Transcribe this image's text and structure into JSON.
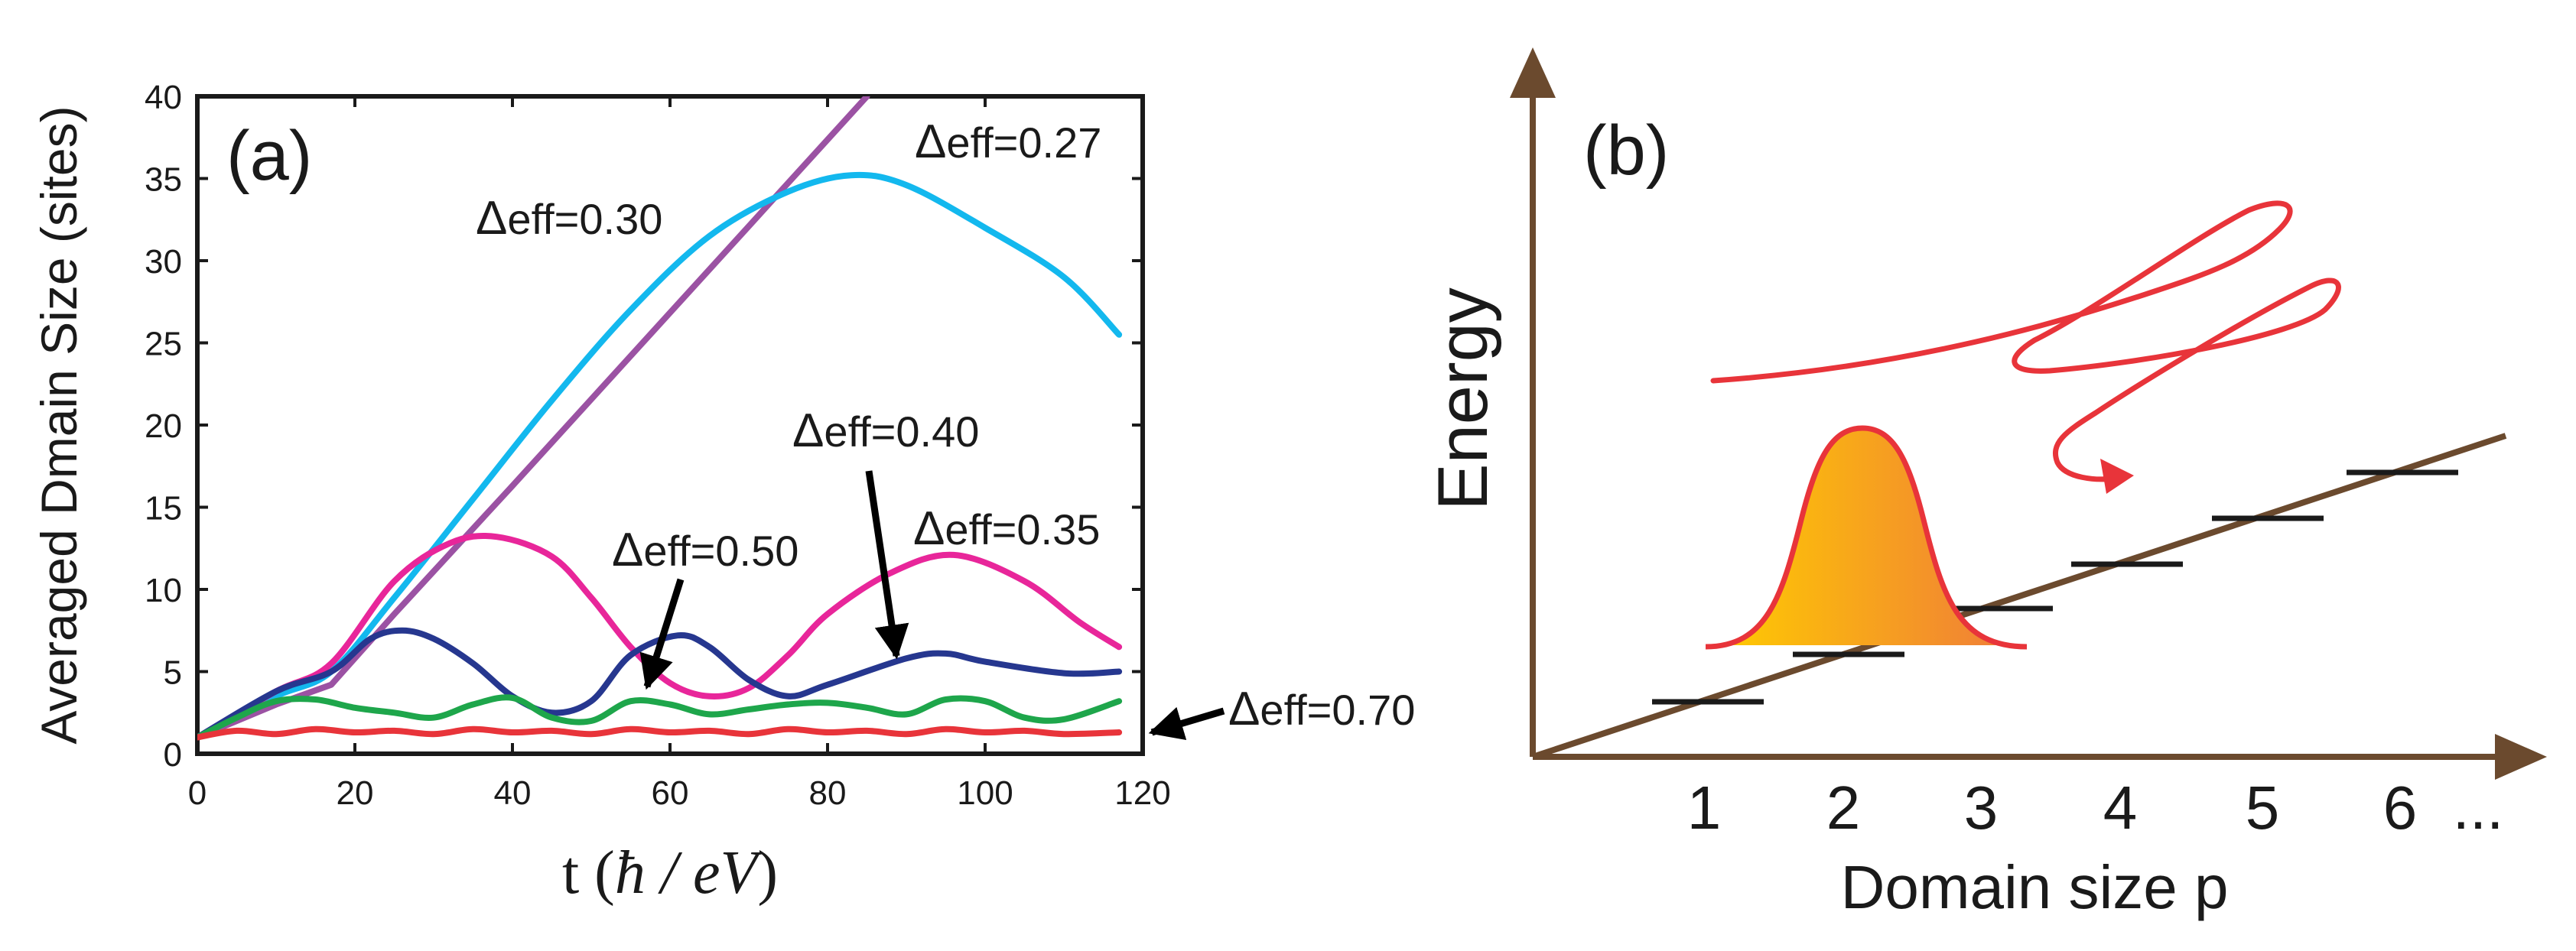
{
  "colors": {
    "axis_a": "#1a1a1a",
    "axis_b": "#6b4a2e",
    "red": "#e8343a",
    "cyan": "#13b8ee",
    "purple": "#9b52a3",
    "magenta": "#e8269a",
    "navy": "#26378f",
    "green": "#1ea64b",
    "grad_start": "#ffcc00",
    "grad_end": "#ef7b3a"
  },
  "panel_a": {
    "label": "(a)",
    "ylabel": "Averaged Dmain Size (sites)",
    "xlabel_prefix": "t (",
    "xlabel_hbar": "ħ",
    "xlabel_mid": " / ",
    "xlabel_var": "eV",
    "xlabel_suffix": ")"
  },
  "chart_data": {
    "type": "line",
    "xlim": [
      0,
      120
    ],
    "ylim": [
      0,
      40
    ],
    "xticks": [
      0,
      20,
      40,
      60,
      80,
      100,
      120
    ],
    "yticks": [
      0,
      5,
      10,
      15,
      20,
      25,
      30,
      35,
      40
    ],
    "series": [
      {
        "name": "Δeff=0.27",
        "color_key": "purple",
        "x": [
          0,
          5,
          10,
          17,
          25,
          40,
          55,
          70,
          85
        ],
        "y": [
          1,
          2,
          3,
          4.2,
          8.5,
          16.3,
          24.2,
          32.1,
          40
        ]
      },
      {
        "name": "Δeff=0.30",
        "color_key": "cyan",
        "x": [
          0,
          10,
          17,
          25,
          35,
          45,
          55,
          65,
          75,
          83,
          90,
          100,
          110,
          117
        ],
        "y": [
          1,
          3.5,
          5,
          9.5,
          15.5,
          21.5,
          27,
          31.5,
          34.2,
          35.2,
          34.6,
          32,
          29,
          25.5
        ]
      },
      {
        "name": "Δeff=0.35",
        "color_key": "magenta",
        "x": [
          0,
          10,
          17,
          25,
          32,
          38,
          45,
          50,
          55,
          60,
          65,
          70,
          75,
          80,
          88,
          96,
          105,
          112,
          117
        ],
        "y": [
          1,
          3.8,
          5.5,
          10.5,
          12.8,
          13.2,
          12,
          9.5,
          6.5,
          4.3,
          3.5,
          4,
          6,
          8.5,
          11,
          12.1,
          10.5,
          8,
          6.5
        ]
      },
      {
        "name": "Δeff=0.40",
        "color_key": "navy",
        "x": [
          0,
          10,
          17,
          22,
          26,
          30,
          35,
          40,
          45,
          50,
          55,
          61,
          65,
          70,
          75,
          80,
          90,
          95,
          100,
          110,
          117
        ],
        "y": [
          1,
          3.8,
          5,
          7,
          7.5,
          7,
          5.5,
          3.5,
          2.5,
          3.2,
          6,
          7.2,
          6.5,
          4.5,
          3.5,
          4.2,
          5.8,
          6.1,
          5.6,
          4.9,
          5
        ]
      },
      {
        "name": "Δeff=0.50",
        "color_key": "green",
        "x": [
          0,
          5,
          10,
          15,
          20,
          25,
          30,
          35,
          40,
          45,
          50,
          55,
          60,
          65,
          70,
          75,
          80,
          85,
          90,
          95,
          100,
          105,
          110,
          117
        ],
        "y": [
          1,
          2.2,
          3.2,
          3.3,
          2.8,
          2.5,
          2.2,
          3,
          3.4,
          2.2,
          2,
          3.2,
          3,
          2.4,
          2.7,
          3,
          3.1,
          2.8,
          2.4,
          3.3,
          3.2,
          2.2,
          2.1,
          3.2
        ]
      },
      {
        "name": "Δeff=0.70",
        "color_key": "red",
        "x": [
          0,
          5,
          10,
          15,
          20,
          25,
          30,
          35,
          40,
          45,
          50,
          55,
          60,
          65,
          70,
          75,
          80,
          85,
          90,
          95,
          100,
          105,
          110,
          117
        ],
        "y": [
          1,
          1.4,
          1.2,
          1.5,
          1.3,
          1.4,
          1.2,
          1.5,
          1.3,
          1.4,
          1.2,
          1.5,
          1.3,
          1.4,
          1.2,
          1.5,
          1.3,
          1.4,
          1.2,
          1.5,
          1.3,
          1.4,
          1.2,
          1.3
        ]
      }
    ],
    "annotations": [
      {
        "delta": "Δ",
        "sub": "eff",
        "value": "=0.27"
      },
      {
        "delta": "Δ",
        "sub": "eff",
        "value": "=0.30"
      },
      {
        "delta": "Δ",
        "sub": "eff",
        "value": "=0.40"
      },
      {
        "delta": "Δ",
        "sub": "eff",
        "value": "=0.50"
      },
      {
        "delta": "Δ",
        "sub": "eff",
        "value": "=0.35"
      },
      {
        "delta": "Δ",
        "sub": "eff",
        "value": "=0.70"
      }
    ]
  },
  "panel_b": {
    "label": "(b)",
    "ylabel": "Energy",
    "xlabel": "Domain size p",
    "ticks": [
      "1",
      "2",
      "3",
      "4",
      "5",
      "6"
    ],
    "ellipsis": "..."
  }
}
